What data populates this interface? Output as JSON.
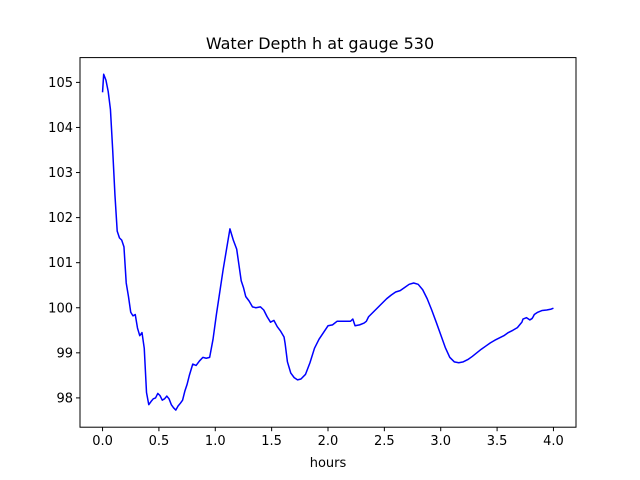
{
  "chart_data": {
    "type": "line",
    "title": "Water Depth h at gauge 530",
    "xlabel": "hours",
    "ylabel": "",
    "xlim": [
      -0.2,
      4.2
    ],
    "ylim": [
      97.35,
      105.55
    ],
    "grid": false,
    "xticks": [
      0.0,
      0.5,
      1.0,
      1.5,
      2.0,
      2.5,
      3.0,
      3.5,
      4.0
    ],
    "xtick_labels": [
      "0.0",
      "0.5",
      "1.0",
      "1.5",
      "2.0",
      "2.5",
      "3.0",
      "3.5",
      "4.0"
    ],
    "yticks": [
      98,
      99,
      100,
      101,
      102,
      103,
      104,
      105
    ],
    "ytick_labels": [
      "98",
      "99",
      "100",
      "101",
      "102",
      "103",
      "104",
      "105"
    ],
    "series": [
      {
        "color": "#0000ff",
        "x": [
          0.0,
          0.01,
          0.03,
          0.05,
          0.07,
          0.09,
          0.11,
          0.13,
          0.15,
          0.17,
          0.19,
          0.21,
          0.23,
          0.25,
          0.27,
          0.29,
          0.31,
          0.33,
          0.35,
          0.37,
          0.39,
          0.41,
          0.43,
          0.45,
          0.47,
          0.49,
          0.51,
          0.53,
          0.55,
          0.57,
          0.59,
          0.61,
          0.63,
          0.65,
          0.67,
          0.69,
          0.71,
          0.73,
          0.75,
          0.77,
          0.8,
          0.83,
          0.86,
          0.89,
          0.92,
          0.95,
          0.98,
          1.01,
          1.04,
          1.07,
          1.1,
          1.13,
          1.16,
          1.19,
          1.21,
          1.23,
          1.25,
          1.27,
          1.3,
          1.33,
          1.36,
          1.4,
          1.43,
          1.46,
          1.49,
          1.52,
          1.55,
          1.58,
          1.61,
          1.62,
          1.63,
          1.64,
          1.67,
          1.7,
          1.73,
          1.76,
          1.8,
          1.84,
          1.88,
          1.92,
          1.96,
          2.0,
          2.04,
          2.08,
          2.12,
          2.16,
          2.2,
          2.22,
          2.24,
          2.28,
          2.32,
          2.33,
          2.34,
          2.36,
          2.4,
          2.44,
          2.48,
          2.52,
          2.56,
          2.6,
          2.64,
          2.68,
          2.72,
          2.76,
          2.8,
          2.84,
          2.88,
          2.92,
          2.96,
          3.0,
          3.04,
          3.08,
          3.12,
          3.16,
          3.2,
          3.24,
          3.28,
          3.32,
          3.36,
          3.4,
          3.44,
          3.48,
          3.52,
          3.56,
          3.6,
          3.64,
          3.68,
          3.71,
          3.72,
          3.73,
          3.76,
          3.79,
          3.81,
          3.82,
          3.83,
          3.86,
          3.9,
          3.94,
          3.98,
          4.0
        ],
        "y": [
          104.78,
          105.18,
          105.05,
          104.8,
          104.4,
          103.5,
          102.5,
          101.7,
          101.55,
          101.5,
          101.35,
          100.55,
          100.25,
          99.9,
          99.82,
          99.85,
          99.55,
          99.38,
          99.45,
          99.1,
          98.12,
          97.85,
          97.92,
          97.98,
          98.0,
          98.1,
          98.05,
          97.95,
          97.98,
          98.04,
          97.98,
          97.85,
          97.78,
          97.73,
          97.82,
          97.88,
          97.95,
          98.15,
          98.3,
          98.5,
          98.75,
          98.72,
          98.82,
          98.9,
          98.88,
          98.9,
          99.3,
          99.85,
          100.35,
          100.85,
          101.3,
          101.75,
          101.5,
          101.3,
          100.95,
          100.6,
          100.45,
          100.25,
          100.15,
          100.02,
          100.0,
          100.02,
          99.95,
          99.8,
          99.68,
          99.72,
          99.58,
          99.48,
          99.35,
          99.2,
          99.0,
          98.8,
          98.55,
          98.45,
          98.4,
          98.42,
          98.52,
          98.78,
          99.1,
          99.3,
          99.45,
          99.6,
          99.62,
          99.7,
          99.7,
          99.7,
          99.7,
          99.75,
          99.6,
          99.62,
          99.66,
          99.68,
          99.7,
          99.8,
          99.9,
          100.0,
          100.1,
          100.2,
          100.28,
          100.35,
          100.38,
          100.45,
          100.52,
          100.55,
          100.52,
          100.4,
          100.2,
          99.95,
          99.68,
          99.4,
          99.12,
          98.9,
          98.8,
          98.78,
          98.8,
          98.85,
          98.92,
          99.0,
          99.08,
          99.15,
          99.22,
          99.28,
          99.33,
          99.38,
          99.45,
          99.5,
          99.56,
          99.65,
          99.68,
          99.75,
          99.78,
          99.73,
          99.76,
          99.8,
          99.85,
          99.9,
          99.94,
          99.95,
          99.97,
          99.99
        ]
      }
    ]
  }
}
